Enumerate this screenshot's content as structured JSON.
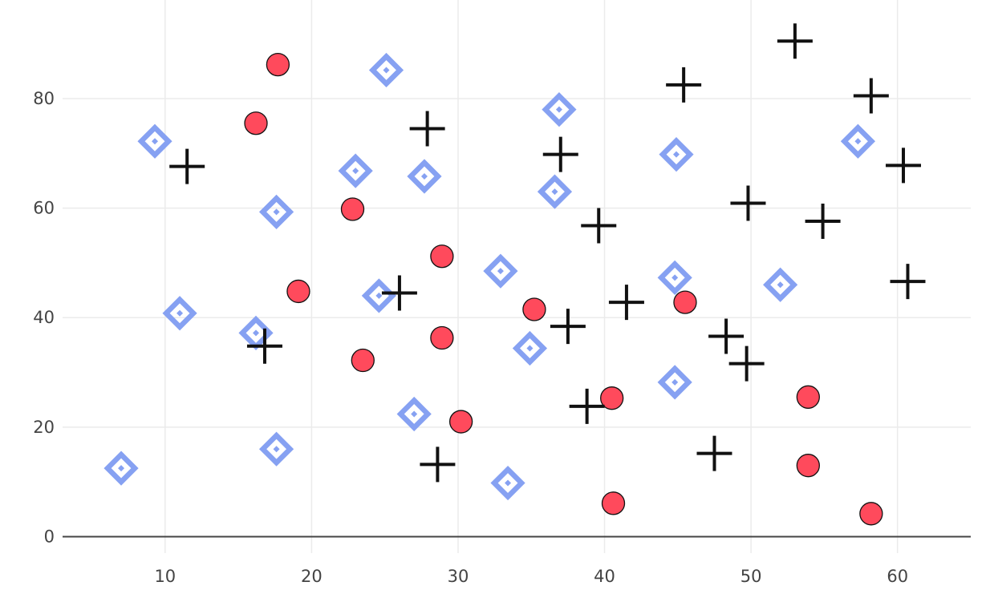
{
  "chart_data": {
    "type": "scatter",
    "title": "",
    "xlabel": "",
    "ylabel": "",
    "xlim": [
      3,
      65
    ],
    "ylim": [
      -3,
      98
    ],
    "x_ticks": [
      10,
      20,
      30,
      40,
      50,
      60
    ],
    "y_ticks": [
      0,
      20,
      40,
      60,
      80
    ],
    "grid": true,
    "legend": "none",
    "series": [
      {
        "marker": "circle",
        "color": "#ff4a5c",
        "points": [
          {
            "x": 17.7,
            "y": 86.2
          },
          {
            "x": 16.2,
            "y": 75.5
          },
          {
            "x": 22.8,
            "y": 59.8
          },
          {
            "x": 28.9,
            "y": 51.2
          },
          {
            "x": 19.1,
            "y": 44.8
          },
          {
            "x": 35.2,
            "y": 41.5
          },
          {
            "x": 45.5,
            "y": 42.8
          },
          {
            "x": 28.9,
            "y": 36.3
          },
          {
            "x": 23.5,
            "y": 32.2
          },
          {
            "x": 40.5,
            "y": 25.3
          },
          {
            "x": 53.9,
            "y": 25.5
          },
          {
            "x": 30.2,
            "y": 21.0
          },
          {
            "x": 53.9,
            "y": 13.0
          },
          {
            "x": 40.6,
            "y": 6.1
          },
          {
            "x": 58.2,
            "y": 4.2
          }
        ]
      },
      {
        "marker": "diamond-open-dot",
        "color": "#86a1f2",
        "points": [
          {
            "x": 25.1,
            "y": 85.2
          },
          {
            "x": 36.9,
            "y": 78.0
          },
          {
            "x": 9.3,
            "y": 72.2
          },
          {
            "x": 57.3,
            "y": 72.2
          },
          {
            "x": 44.9,
            "y": 69.8
          },
          {
            "x": 23.0,
            "y": 66.8
          },
          {
            "x": 27.7,
            "y": 65.8
          },
          {
            "x": 36.6,
            "y": 63.0
          },
          {
            "x": 17.6,
            "y": 59.3
          },
          {
            "x": 32.9,
            "y": 48.5
          },
          {
            "x": 44.8,
            "y": 47.3
          },
          {
            "x": 52.0,
            "y": 46.0
          },
          {
            "x": 24.6,
            "y": 44.0
          },
          {
            "x": 11.0,
            "y": 40.8
          },
          {
            "x": 16.2,
            "y": 37.2
          },
          {
            "x": 34.9,
            "y": 34.4
          },
          {
            "x": 44.8,
            "y": 28.2
          },
          {
            "x": 27.0,
            "y": 22.4
          },
          {
            "x": 17.6,
            "y": 16.0
          },
          {
            "x": 7.0,
            "y": 12.5
          },
          {
            "x": 33.4,
            "y": 9.8
          }
        ]
      },
      {
        "marker": "cross-thin",
        "color": "#111111",
        "points": [
          {
            "x": 53.0,
            "y": 90.5
          },
          {
            "x": 45.4,
            "y": 82.5
          },
          {
            "x": 58.2,
            "y": 80.5
          },
          {
            "x": 27.9,
            "y": 74.5
          },
          {
            "x": 37.0,
            "y": 69.8
          },
          {
            "x": 11.5,
            "y": 67.6
          },
          {
            "x": 60.4,
            "y": 67.8
          },
          {
            "x": 49.8,
            "y": 60.9
          },
          {
            "x": 54.9,
            "y": 57.6
          },
          {
            "x": 39.6,
            "y": 56.8
          },
          {
            "x": 60.7,
            "y": 46.6
          },
          {
            "x": 26.0,
            "y": 44.5
          },
          {
            "x": 41.5,
            "y": 42.8
          },
          {
            "x": 37.5,
            "y": 38.4
          },
          {
            "x": 48.3,
            "y": 36.6
          },
          {
            "x": 16.8,
            "y": 34.8
          },
          {
            "x": 49.7,
            "y": 31.6
          },
          {
            "x": 38.8,
            "y": 23.8
          },
          {
            "x": 47.5,
            "y": 15.2
          },
          {
            "x": 28.6,
            "y": 13.2
          }
        ]
      }
    ]
  }
}
